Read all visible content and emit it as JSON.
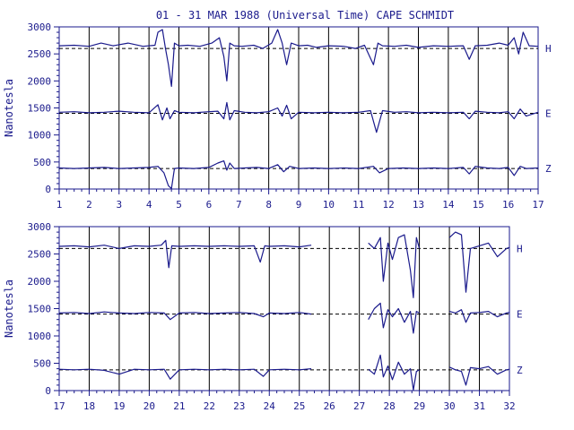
{
  "chart_data": [
    {
      "type": "line",
      "title": "01 - 31 MAR 1988 (Universal Time) CAPE SCHMIDT",
      "ylabel": "Nanotesla",
      "xlabel": "",
      "xlim": [
        1,
        17
      ],
      "ylim": [
        0,
        3000
      ],
      "x_ticks": [
        1,
        2,
        3,
        4,
        5,
        6,
        7,
        8,
        9,
        10,
        11,
        12,
        13,
        14,
        15,
        16,
        17
      ],
      "y_ticks": [
        0,
        500,
        1000,
        1500,
        2000,
        2500,
        3000
      ],
      "grid": "vertical day lines; dashed baselines",
      "series": [
        {
          "name": "H",
          "baseline": 2600,
          "x": [
            1,
            1.5,
            2,
            2.4,
            2.8,
            3.3,
            3.8,
            4.2,
            4.3,
            4.45,
            4.55,
            4.65,
            4.75,
            4.85,
            5.0,
            5.3,
            5.7,
            6.1,
            6.35,
            6.5,
            6.6,
            6.7,
            6.85,
            7.1,
            7.5,
            7.8,
            8.1,
            8.3,
            8.45,
            8.6,
            8.75,
            9.0,
            9.3,
            9.6,
            10.0,
            10.5,
            10.9,
            11.2,
            11.5,
            11.65,
            11.8,
            12.2,
            12.6,
            13.0,
            13.5,
            14.0,
            14.5,
            14.7,
            14.9,
            15.3,
            15.7,
            16.0,
            16.2,
            16.35,
            16.5,
            16.7,
            17
          ],
          "values": [
            2650,
            2660,
            2640,
            2700,
            2650,
            2700,
            2640,
            2660,
            2900,
            2950,
            2600,
            2300,
            1900,
            2700,
            2650,
            2660,
            2640,
            2700,
            2800,
            2450,
            2000,
            2700,
            2650,
            2640,
            2660,
            2600,
            2700,
            2950,
            2700,
            2300,
            2700,
            2650,
            2660,
            2620,
            2650,
            2640,
            2600,
            2660,
            2300,
            2700,
            2650,
            2640,
            2660,
            2620,
            2650,
            2640,
            2650,
            2400,
            2650,
            2660,
            2700,
            2660,
            2800,
            2500,
            2900,
            2650,
            2640
          ]
        },
        {
          "name": "E",
          "baseline": 1400,
          "x": [
            1,
            1.5,
            2,
            2.5,
            3,
            3.5,
            4,
            4.3,
            4.45,
            4.6,
            4.7,
            4.85,
            5.0,
            5.5,
            6.0,
            6.3,
            6.5,
            6.6,
            6.7,
            6.85,
            7.2,
            7.6,
            8.0,
            8.3,
            8.45,
            8.6,
            8.75,
            9.0,
            9.5,
            10.0,
            10.5,
            11.0,
            11.4,
            11.6,
            11.8,
            12.2,
            12.6,
            13.0,
            13.5,
            14.0,
            14.5,
            14.7,
            14.9,
            15.3,
            15.7,
            16.0,
            16.2,
            16.4,
            16.6,
            17
          ],
          "values": [
            1420,
            1430,
            1410,
            1420,
            1440,
            1420,
            1410,
            1560,
            1280,
            1500,
            1300,
            1450,
            1420,
            1410,
            1430,
            1440,
            1300,
            1600,
            1280,
            1450,
            1420,
            1410,
            1430,
            1500,
            1350,
            1550,
            1300,
            1420,
            1410,
            1420,
            1410,
            1420,
            1450,
            1050,
            1450,
            1420,
            1430,
            1410,
            1420,
            1410,
            1420,
            1300,
            1440,
            1420,
            1410,
            1430,
            1300,
            1480,
            1350,
            1420
          ]
        },
        {
          "name": "Z",
          "baseline": 380,
          "x": [
            1,
            1.5,
            2,
            2.5,
            3,
            3.5,
            4,
            4.3,
            4.5,
            4.65,
            4.75,
            4.85,
            5.0,
            5.5,
            6.0,
            6.3,
            6.5,
            6.6,
            6.7,
            6.85,
            7.2,
            7.6,
            8.0,
            8.3,
            8.5,
            8.7,
            9.0,
            9.5,
            10.0,
            10.5,
            11.0,
            11.5,
            11.7,
            12.0,
            12.5,
            13.0,
            13.5,
            14.0,
            14.5,
            14.7,
            14.9,
            15.3,
            15.7,
            16.0,
            16.2,
            16.4,
            16.6,
            17
          ],
          "values": [
            390,
            380,
            390,
            400,
            380,
            390,
            400,
            420,
            300,
            60,
            10,
            380,
            390,
            380,
            400,
            480,
            520,
            350,
            480,
            380,
            390,
            400,
            380,
            450,
            320,
            420,
            380,
            390,
            380,
            390,
            380,
            420,
            300,
            380,
            390,
            380,
            390,
            380,
            400,
            280,
            420,
            390,
            380,
            400,
            250,
            420,
            380,
            390
          ]
        }
      ]
    },
    {
      "type": "line",
      "title": "",
      "ylabel": "Nanotesla",
      "xlabel": "",
      "xlim": [
        17,
        32
      ],
      "ylim": [
        0,
        3000
      ],
      "x_ticks": [
        17,
        18,
        19,
        20,
        21,
        22,
        23,
        24,
        25,
        26,
        27,
        28,
        29,
        30,
        31,
        32
      ],
      "y_ticks": [
        0,
        500,
        1000,
        1500,
        2000,
        2500,
        3000
      ],
      "grid": "vertical day lines; dashed baselines",
      "series": [
        {
          "name": "H",
          "baseline": 2600,
          "segments": [
            {
              "x": [
                17,
                17.5,
                18,
                18.5,
                19,
                19.5,
                20,
                20.4,
                20.55,
                20.65,
                20.75,
                21,
                21.5,
                22,
                22.5,
                23,
                23.5,
                23.7,
                23.85,
                24,
                24.5,
                25,
                25.4
              ],
              "values": [
                2640,
                2650,
                2630,
                2660,
                2600,
                2650,
                2640,
                2660,
                2750,
                2250,
                2650,
                2640,
                2650,
                2640,
                2650,
                2640,
                2650,
                2350,
                2650,
                2640,
                2650,
                2630,
                2660
              ]
            },
            {
              "x": [
                27.3,
                27.5,
                27.7,
                27.8,
                27.95,
                28.1,
                28.3,
                28.5,
                28.7,
                28.8,
                28.9,
                29.0
              ],
              "values": [
                2700,
                2600,
                2800,
                2000,
                2700,
                2400,
                2800,
                2850,
                2200,
                1700,
                2800,
                2600
              ]
            },
            {
              "x": [
                30.0,
                30.2,
                30.4,
                30.55,
                30.7,
                31.0,
                31.3,
                31.6,
                31.9,
                32
              ],
              "values": [
                2800,
                2900,
                2850,
                1800,
                2600,
                2650,
                2700,
                2450,
                2600,
                2620
              ]
            }
          ]
        },
        {
          "name": "E",
          "baseline": 1400,
          "segments": [
            {
              "x": [
                17,
                17.5,
                18,
                18.5,
                19,
                19.5,
                20,
                20.5,
                20.7,
                21,
                21.5,
                22,
                22.5,
                23,
                23.5,
                23.8,
                24,
                24.5,
                25,
                25.4
              ],
              "values": [
                1420,
                1430,
                1410,
                1440,
                1420,
                1410,
                1430,
                1420,
                1300,
                1420,
                1430,
                1410,
                1420,
                1430,
                1410,
                1350,
                1420,
                1410,
                1430,
                1400
              ]
            },
            {
              "x": [
                27.3,
                27.5,
                27.7,
                27.8,
                27.95,
                28.1,
                28.3,
                28.5,
                28.7,
                28.8,
                28.9,
                29.0
              ],
              "values": [
                1300,
                1500,
                1600,
                1150,
                1480,
                1350,
                1500,
                1250,
                1450,
                1050,
                1450,
                1420
              ]
            },
            {
              "x": [
                30.0,
                30.2,
                30.4,
                30.55,
                30.7,
                31.0,
                31.3,
                31.6,
                31.9,
                32
              ],
              "values": [
                1450,
                1420,
                1480,
                1250,
                1420,
                1430,
                1450,
                1350,
                1420,
                1430
              ]
            }
          ]
        },
        {
          "name": "Z",
          "baseline": 380,
          "segments": [
            {
              "x": [
                17,
                17.5,
                18,
                18.5,
                19,
                19.5,
                20,
                20.5,
                20.7,
                21,
                21.5,
                22,
                22.5,
                23,
                23.5,
                23.8,
                24,
                24.5,
                25,
                25.4
              ],
              "values": [
                390,
                380,
                390,
                370,
                300,
                390,
                380,
                390,
                210,
                380,
                390,
                380,
                390,
                380,
                390,
                260,
                380,
                390,
                380,
                400
              ]
            },
            {
              "x": [
                27.3,
                27.5,
                27.7,
                27.8,
                27.95,
                28.1,
                28.3,
                28.5,
                28.7,
                28.8,
                28.9,
                29.0
              ],
              "values": [
                390,
                300,
                650,
                250,
                450,
                200,
                520,
                300,
                400,
                10,
                350,
                380
              ]
            },
            {
              "x": [
                30.0,
                30.2,
                30.4,
                30.55,
                30.7,
                31.0,
                31.3,
                31.6,
                31.9,
                32
              ],
              "values": [
                430,
                380,
                350,
                100,
                420,
                400,
                440,
                300,
                380,
                390
              ]
            }
          ]
        }
      ]
    }
  ],
  "colors": {
    "trace": "#1a1a8c",
    "axis": "#1a1a8c",
    "grid": "#000000",
    "background": "#ffffff"
  }
}
